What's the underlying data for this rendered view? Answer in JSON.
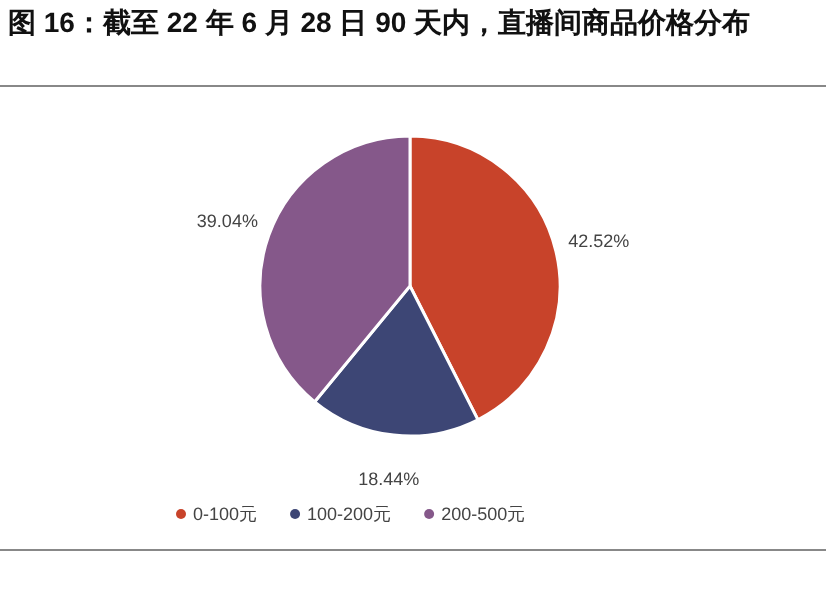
{
  "chart_data": {
    "type": "pie",
    "title": "图 16：截至 22 年 6 月 28 日 90 天内，直播间商品价格分布",
    "categories": [
      "0-100元",
      "100-200元",
      "200-500元"
    ],
    "values": [
      42.52,
      18.44,
      39.04
    ],
    "colors": [
      "#c8432a",
      "#3d4675",
      "#85588a"
    ],
    "value_labels": [
      "42.52%",
      "18.44%",
      "39.04%"
    ],
    "legend": "bottom"
  }
}
